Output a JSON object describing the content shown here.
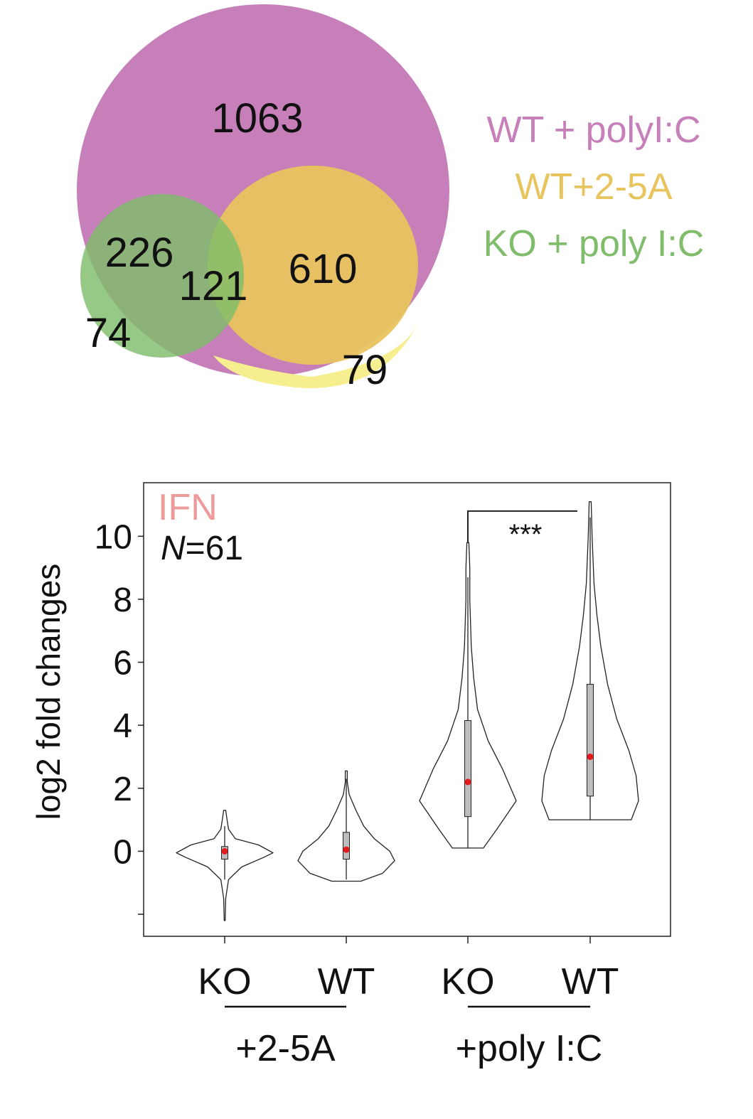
{
  "colors": {
    "wt_polyic": "#c77fba",
    "wt_25a": "#e8c45e",
    "ko_polyic": "#7fbd6b",
    "yellow_only": "#f6ee8f",
    "center": "#b7b434",
    "ko_wt_overlap": "#6f8c67",
    "ifn_label": "#ef9a9a",
    "median_dot": "#e31a1c",
    "box_fill": "#bdbdbd"
  },
  "venn": {
    "counts": {
      "wt_polyic_only": "1063",
      "ko_wt_polyic": "226",
      "all_three": "121",
      "wt_polyic_25a": "610",
      "ko_only": "74",
      "wt_25a_only": "79"
    },
    "legend": [
      "WT + polyI:C",
      "WT+2-5A",
      "KO + poly I:C"
    ]
  },
  "chart_data": {
    "type": "violin",
    "title": "IFN",
    "annotation_italic": "N",
    "annotation_rest": "=61",
    "ylabel": "log2 fold changes",
    "ylim": [
      -2.7,
      11.7
    ],
    "yticks": [
      -2,
      0,
      2,
      4,
      6,
      8,
      10
    ],
    "ytick_labels": [
      "",
      "0",
      "2",
      "4",
      "6",
      "8",
      "10"
    ],
    "categories": [
      "KO",
      "WT",
      "KO",
      "WT"
    ],
    "groups": [
      {
        "label": "+2-5A",
        "members": [
          0,
          1
        ]
      },
      {
        "label": "+poly I:C",
        "members": [
          2,
          3
        ]
      }
    ],
    "significance": {
      "between": [
        2,
        3
      ],
      "label": "***",
      "y": 10.8
    },
    "violins": [
      {
        "min": -2.2,
        "max": 1.3,
        "q1": -0.25,
        "q3": 0.15,
        "median": 0.0,
        "whisker_low": -0.9,
        "whisker_high": 0.8,
        "profile": [
          [
            -2.2,
            0.01
          ],
          [
            -1.5,
            0.02
          ],
          [
            -0.9,
            0.08
          ],
          [
            -0.5,
            0.35
          ],
          [
            -0.2,
            0.8
          ],
          [
            -0.05,
            1.0
          ],
          [
            0.2,
            0.7
          ],
          [
            0.4,
            0.22
          ],
          [
            0.7,
            0.08
          ],
          [
            1.1,
            0.04
          ],
          [
            1.3,
            0.02
          ]
        ]
      },
      {
        "min": -0.95,
        "max": 2.55,
        "q1": -0.25,
        "q3": 0.6,
        "median": 0.05,
        "whisker_low": -0.9,
        "whisker_high": 2.3,
        "profile": [
          [
            -0.95,
            0.3
          ],
          [
            -0.7,
            0.75
          ],
          [
            -0.3,
            1.0
          ],
          [
            0.0,
            0.9
          ],
          [
            0.4,
            0.58
          ],
          [
            0.8,
            0.36
          ],
          [
            1.3,
            0.2
          ],
          [
            1.8,
            0.06
          ],
          [
            2.2,
            0.02
          ],
          [
            2.55,
            0.02
          ]
        ]
      },
      {
        "min": 0.1,
        "max": 9.8,
        "q1": 1.1,
        "q3": 4.15,
        "median": 2.2,
        "whisker_low": 0.1,
        "whisker_high": 8.7,
        "profile": [
          [
            0.1,
            0.32
          ],
          [
            0.7,
            0.6
          ],
          [
            1.6,
            1.0
          ],
          [
            2.6,
            0.72
          ],
          [
            3.5,
            0.42
          ],
          [
            4.5,
            0.2
          ],
          [
            5.5,
            0.12
          ],
          [
            6.5,
            0.07
          ],
          [
            8.0,
            0.04
          ],
          [
            9.0,
            0.04
          ],
          [
            9.8,
            0.02
          ]
        ]
      },
      {
        "min": 1.0,
        "max": 11.1,
        "q1": 1.75,
        "q3": 5.3,
        "median": 3.0,
        "whisker_low": 1.0,
        "whisker_high": 10.6,
        "profile": [
          [
            1.0,
            0.85
          ],
          [
            1.6,
            1.0
          ],
          [
            2.4,
            0.95
          ],
          [
            3.2,
            0.8
          ],
          [
            4.2,
            0.55
          ],
          [
            5.3,
            0.36
          ],
          [
            6.5,
            0.22
          ],
          [
            7.5,
            0.14
          ],
          [
            8.5,
            0.08
          ],
          [
            10.0,
            0.04
          ],
          [
            11.1,
            0.02
          ]
        ]
      }
    ]
  }
}
